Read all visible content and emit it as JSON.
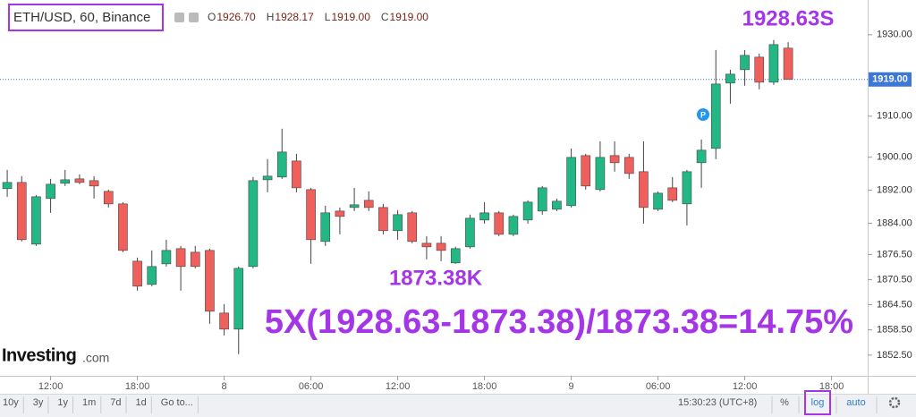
{
  "header": {
    "symbol": "ETH/USD, 60, Binance",
    "ohlc": [
      {
        "letter": "O",
        "value": "1926.70"
      },
      {
        "letter": "H",
        "value": "1928.17"
      },
      {
        "letter": "L",
        "value": "1919.00"
      },
      {
        "letter": "C",
        "value": "1919.00"
      }
    ]
  },
  "chart_data": {
    "type": "candlestick",
    "open": [
      1892.37,
      1893.88,
      1878.99,
      1889.99,
      1893.67,
      1894.75,
      1894.32,
      1891.72,
      1888.69,
      1874.9,
      1869.33,
      1874.26,
      1877.91,
      1877.05,
      1877.48,
      1862.5,
      1858.67,
      1873.62,
      1894.53,
      1895.19,
      1899.09,
      1892.15,
      1879.63,
      1886.96,
      1887.82,
      1889.55,
      1887.82,
      1882.22,
      1886.53,
      1879.2,
      1879.2,
      1874.48,
      1878.34,
      1884.8,
      1886.53,
      1881.35,
      1884.8,
      1886.96,
      1887.39,
      1888.26,
      1900.4,
      1892.15,
      1900.4,
      1899.96,
      1896.49,
      1887.39,
      1892.58,
      1888.69,
      1898.66,
      1902.14,
      1918.1,
      1921.4,
      1924.48,
      1918.32,
      1926.7
    ],
    "high": [
      1896.92,
      1895.4,
      1890.85,
      1894.75,
      1896.92,
      1895.84,
      1895.4,
      1892.15,
      1889.12,
      1875.76,
      1877.48,
      1880.06,
      1878.56,
      1878.56,
      1877.91,
      1864.63,
      1873.62,
      1895.19,
      1899.53,
      1906.94,
      1900.83,
      1892.58,
      1888.26,
      1887.82,
      1892.58,
      1891.72,
      1888.69,
      1887.18,
      1886.96,
      1880.92,
      1880.92,
      1878.34,
      1886.1,
      1889.12,
      1886.96,
      1886.1,
      1889.55,
      1893.02,
      1889.99,
      1902.14,
      1900.83,
      1903.88,
      1903.88,
      1900.83,
      1903.88,
      1891.72,
      1895.19,
      1896.92,
      1904.32,
      1926.24,
      1921.4,
      1926.24,
      1925.36,
      1928.67,
      1928.17
    ],
    "low": [
      1890.42,
      1879.63,
      1878.56,
      1886.53,
      1893.02,
      1893.45,
      1889.99,
      1887.82,
      1877.05,
      1867.84,
      1868.91,
      1873.62,
      1867.84,
      1873.19,
      1859.95,
      1857.18,
      1852.73,
      1873.19,
      1891.5,
      1894.75,
      1891.5,
      1874.26,
      1878.56,
      1881.35,
      1886.96,
      1886.96,
      1881.35,
      1880.06,
      1879.2,
      1875.33,
      1874.9,
      1874.26,
      1877.91,
      1883.94,
      1880.92,
      1880.92,
      1883.94,
      1886.1,
      1886.96,
      1887.82,
      1892.15,
      1891.72,
      1896.49,
      1894.75,
      1883.94,
      1886.96,
      1889.12,
      1883.51,
      1892.58,
      1899.53,
      1913.06,
      1917.45,
      1916.57,
      1917.67,
      1919.0
    ],
    "close": [
      1893.88,
      1880.06,
      1890.42,
      1893.45,
      1894.53,
      1893.88,
      1893.02,
      1888.69,
      1877.48,
      1868.91,
      1873.62,
      1877.48,
      1873.62,
      1873.62,
      1862.93,
      1858.67,
      1873.19,
      1894.32,
      1895.4,
      1901.27,
      1892.58,
      1880.06,
      1886.53,
      1885.66,
      1888.47,
      1887.82,
      1882.22,
      1886.1,
      1879.63,
      1878.34,
      1877.48,
      1877.91,
      1885.23,
      1886.53,
      1881.35,
      1885.66,
      1889.12,
      1892.58,
      1889.34,
      1899.96,
      1893.02,
      1899.96,
      1898.66,
      1896.05,
      1887.82,
      1891.28,
      1889.55,
      1896.49,
      1901.71,
      1917.88,
      1920.3,
      1924.92,
      1918.32,
      1927.57,
      1919.0
    ],
    "up_color": "#22b784",
    "down_color": "#ef5f5b",
    "log_scale": true,
    "grid": false,
    "ylim": [
      1847.6,
      1938.6
    ],
    "yticks": [
      {
        "value": 1930,
        "label": "1930.00"
      },
      {
        "value": 1910,
        "label": "1910.00"
      },
      {
        "value": 1900,
        "label": "1900.00"
      },
      {
        "value": 1892,
        "label": "1892.00"
      },
      {
        "value": 1884,
        "label": "1884.00"
      },
      {
        "value": 1876.5,
        "label": "1876.50"
      },
      {
        "value": 1870.5,
        "label": "1870.50"
      },
      {
        "value": 1864.5,
        "label": "1864.50"
      },
      {
        "value": 1858.5,
        "label": "1858.50"
      },
      {
        "value": 1852.5,
        "label": "1852.50"
      }
    ],
    "xlim": [
      -0.5,
      59.5
    ],
    "xticks": [
      {
        "value": 3,
        "label": "12:00"
      },
      {
        "value": 9,
        "label": "18:00"
      },
      {
        "value": 15,
        "label": "8"
      },
      {
        "value": 21,
        "label": "06:00"
      },
      {
        "value": 27,
        "label": "12:00"
      },
      {
        "value": 33,
        "label": "18:00"
      },
      {
        "value": 39,
        "label": "9"
      },
      {
        "value": 45,
        "label": "06:00"
      },
      {
        "value": 51,
        "label": "12:00"
      },
      {
        "value": 57,
        "label": "18:00"
      }
    ],
    "price_line": {
      "value": 1919,
      "label": "1919.00"
    },
    "annotations": [
      "1928.63S",
      "1873.38K",
      "5X(1928.63-1873.38)/1873.38=14.75%"
    ],
    "marker": "P"
  },
  "logo": {
    "name": "Investing",
    "suffix": ".com"
  },
  "toolbar": {
    "ranges": [
      "10y",
      "3y",
      "1y",
      "1m",
      "7d",
      "1d",
      "Go to..."
    ],
    "clock": "15:30:23 (UTC+8)",
    "percent": "%",
    "log": "log",
    "auto": "auto"
  }
}
